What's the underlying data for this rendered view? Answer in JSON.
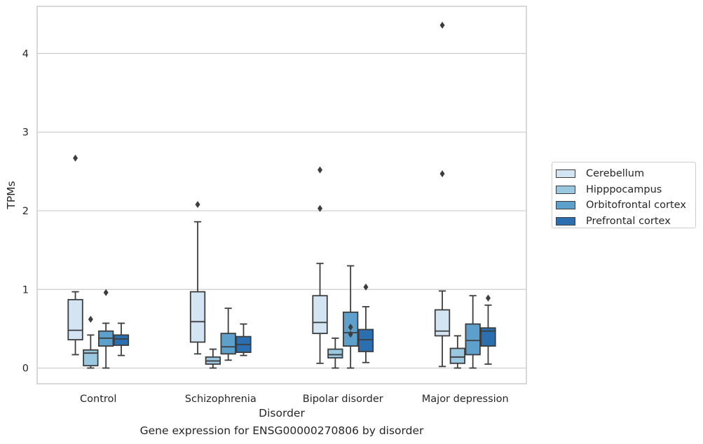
{
  "chart_data": {
    "type": "boxplot",
    "xlabel": "Disorder",
    "ylabel": "TPMs",
    "ylim": [
      -0.2,
      4.6
    ],
    "yticks": [
      0,
      1,
      2,
      3,
      4
    ],
    "grid": "horizontal",
    "legend_position": "right",
    "categories": [
      "Control",
      "Schizophrenia",
      "Bipolar disorder",
      "Major depression"
    ],
    "series": [
      {
        "name": "Cerebellum",
        "color": "#d3e4f3",
        "boxes": [
          {
            "min": 0.17,
            "q1": 0.36,
            "median": 0.48,
            "q3": 0.87,
            "max": 0.97,
            "outliers": [
              2.67
            ]
          },
          {
            "min": 0.18,
            "q1": 0.33,
            "median": 0.59,
            "q3": 0.97,
            "max": 1.86,
            "outliers": [
              2.08
            ]
          },
          {
            "min": 0.06,
            "q1": 0.44,
            "median": 0.58,
            "q3": 0.92,
            "max": 1.33,
            "outliers": [
              2.03,
              2.52
            ]
          },
          {
            "min": 0.02,
            "q1": 0.41,
            "median": 0.47,
            "q3": 0.74,
            "max": 0.98,
            "outliers": [
              2.47,
              4.36
            ]
          }
        ]
      },
      {
        "name": "Hipppocampus",
        "color": "#9ac8e0",
        "boxes": [
          {
            "min": 0.0,
            "q1": 0.03,
            "median": 0.19,
            "q3": 0.23,
            "max": 0.42,
            "outliers": [
              0.62
            ]
          },
          {
            "min": 0.0,
            "q1": 0.05,
            "median": 0.09,
            "q3": 0.14,
            "max": 0.24,
            "outliers": []
          },
          {
            "min": 0.0,
            "q1": 0.13,
            "median": 0.17,
            "q3": 0.24,
            "max": 0.38,
            "outliers": []
          },
          {
            "min": 0.0,
            "q1": 0.06,
            "median": 0.14,
            "q3": 0.25,
            "max": 0.41,
            "outliers": []
          }
        ]
      },
      {
        "name": "Orbitofrontal cortex",
        "color": "#5da0cb",
        "boxes": [
          {
            "min": 0.0,
            "q1": 0.28,
            "median": 0.38,
            "q3": 0.47,
            "max": 0.57,
            "outliers": [
              0.96
            ]
          },
          {
            "min": 0.1,
            "q1": 0.18,
            "median": 0.27,
            "q3": 0.44,
            "max": 0.76,
            "outliers": []
          },
          {
            "min": 0.0,
            "q1": 0.28,
            "median": 0.45,
            "q3": 0.71,
            "max": 1.3,
            "outliers": [
              0.43,
              0.52
            ]
          },
          {
            "min": 0.0,
            "q1": 0.17,
            "median": 0.35,
            "q3": 0.56,
            "max": 0.92,
            "outliers": []
          }
        ]
      },
      {
        "name": "Prefrontal cortex",
        "color": "#2c6fb0",
        "boxes": [
          {
            "min": 0.16,
            "q1": 0.29,
            "median": 0.37,
            "q3": 0.42,
            "max": 0.57,
            "outliers": []
          },
          {
            "min": 0.16,
            "q1": 0.2,
            "median": 0.3,
            "q3": 0.4,
            "max": 0.56,
            "outliers": []
          },
          {
            "min": 0.07,
            "q1": 0.21,
            "median": 0.36,
            "q3": 0.49,
            "max": 0.78,
            "outliers": [
              1.03
            ]
          },
          {
            "min": 0.05,
            "q1": 0.28,
            "median": 0.47,
            "q3": 0.51,
            "max": 0.8,
            "outliers": [
              0.89
            ]
          }
        ]
      }
    ]
  },
  "caption": "Gene expression for ENSG00000270806 by disorder"
}
